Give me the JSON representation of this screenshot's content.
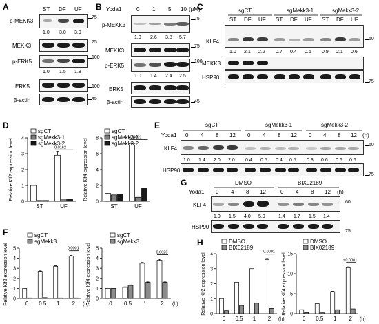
{
  "figure": {
    "panels": {
      "A": {
        "label": "A",
        "lanes": [
          "ST",
          "DF",
          "UF"
        ],
        "rows": [
          {
            "name": "p-MEKK3",
            "quant": [
              "1.0",
              "3.0",
              "3.9"
            ],
            "marker": "75"
          },
          {
            "name": "MEKK3",
            "quant": [],
            "marker": "75"
          },
          {
            "name": "p-ERK5",
            "quant": [
              "1.0",
              "1.5",
              "1.8"
            ],
            "marker": "100"
          },
          {
            "name": "ERK5",
            "quant": [],
            "marker": "100"
          },
          {
            "name": "β-actin",
            "quant": [],
            "marker": "45"
          }
        ]
      },
      "B": {
        "label": "B",
        "treatment": "Yoda1",
        "lanes": [
          "0",
          "1",
          "5",
          "10"
        ],
        "unit": "(μM)",
        "rows": [
          {
            "name": "p-MEKK3",
            "quant": [
              "1.0",
              "2.6",
              "3.8",
              "5.7"
            ],
            "marker": "75"
          },
          {
            "name": "MEKK3",
            "quant": [],
            "marker": "75"
          },
          {
            "name": "p-ERK5",
            "quant": [
              "1.0",
              "1.4",
              "2.4",
              "2.5"
            ],
            "marker": "100"
          },
          {
            "name": "ERK5",
            "quant": [],
            "marker": "100"
          },
          {
            "name": "β-actin",
            "quant": [],
            "marker": "45"
          }
        ]
      },
      "C": {
        "label": "C",
        "groups": [
          "sgCT",
          "sgMekk3-1",
          "sgMekk3-2"
        ],
        "lanes": [
          "ST",
          "DF",
          "UF",
          "ST",
          "DF",
          "UF",
          "ST",
          "DF",
          "UF"
        ],
        "rows": [
          {
            "name": "KLF4",
            "quant": [
              "1.0",
              "2.1",
              "2.2",
              "0.7",
              "0.4",
              "0.6",
              "0.9",
              "2.1",
              "0.6"
            ],
            "marker": "60"
          },
          {
            "name": "MEKK3",
            "quant": [],
            "marker": ""
          },
          {
            "name": "HSP90",
            "quant": [],
            "marker": "75"
          }
        ]
      },
      "D": {
        "label": "D",
        "legend": [
          "sgCT",
          "sgMekk3-1",
          "sgMekk3-2"
        ],
        "charts": [
          {
            "ylabel": "Relative Klf2 expression level",
            "annotation": "0.0162"
          },
          {
            "ylabel": "Relative Klf4 expression level",
            "annotation": "<0.0001"
          }
        ]
      },
      "E": {
        "label": "E",
        "treatment": "Yoda1",
        "groups": [
          "sgCT",
          "sgMekk3-1",
          "sgMekk3-2"
        ],
        "lanes": [
          "0",
          "4",
          "8",
          "12",
          "0",
          "4",
          "8",
          "12",
          "0",
          "4",
          "8",
          "12"
        ],
        "unit": "(h)",
        "rows": [
          {
            "name": "KLF4",
            "quant": [
              "1.0",
              "1.4",
              "2.0",
              "2.0",
              "0.4",
              "0.5",
              "0.4",
              "0.5",
              "0.3",
              "0.6",
              "0.6",
              "0.6"
            ],
            "marker": "60"
          },
          {
            "name": "HSP90",
            "quant": [],
            "marker": "75"
          }
        ]
      },
      "F": {
        "label": "F",
        "legend": [
          "sgCT",
          "sgMekk3"
        ],
        "charts": [
          {
            "ylabel": "Relative Klf2 expression level",
            "annotation": "0.0001"
          },
          {
            "ylabel": "Relative Klf4 expression level",
            "annotation": "0.0020"
          }
        ]
      },
      "G": {
        "label": "G",
        "treatment": "Yoda1",
        "groups": [
          "DMSO",
          "BIX02189"
        ],
        "lanes": [
          "0",
          "4",
          "8",
          "12",
          "0",
          "4",
          "8",
          "12"
        ],
        "unit": "(h)",
        "rows": [
          {
            "name": "KLF4",
            "quant": [
              "1.0",
              "1.5",
              "4.0",
              "5.9",
              "1.4",
              "1.7",
              "1.5",
              "1.4"
            ],
            "marker": "60"
          },
          {
            "name": "HSP90",
            "quant": [],
            "marker": "75"
          }
        ]
      },
      "H": {
        "label": "H",
        "legend": [
          "DMSO",
          "BIX02189"
        ],
        "charts": [
          {
            "ylabel": "Relative Klf2 expression level",
            "annotation": "0.0001"
          },
          {
            "ylabel": "Relative Klf4 expression level",
            "annotation": "<0.0001"
          }
        ]
      }
    }
  },
  "chart_data": [
    {
      "panel": "D-left",
      "type": "bar",
      "categories": [
        "ST",
        "UF"
      ],
      "series": [
        {
          "name": "sgCT",
          "values": [
            1.0,
            2.9
          ]
        },
        {
          "name": "sgMekk3-1",
          "values": [
            0.05,
            0.15
          ]
        },
        {
          "name": "sgMekk3-2",
          "values": [
            0.05,
            0.15
          ]
        }
      ],
      "ylim": [
        0,
        4
      ],
      "yticks": [
        "0",
        "1",
        "2",
        "3",
        "4"
      ],
      "errors": [
        [
          0,
          0.25
        ],
        [
          0,
          0
        ],
        [
          0,
          0
        ]
      ]
    },
    {
      "panel": "D-right",
      "type": "bar",
      "categories": [
        "ST",
        "UF"
      ],
      "series": [
        {
          "name": "sgCT",
          "values": [
            1.0,
            7.1
          ]
        },
        {
          "name": "sgMekk3-1",
          "values": [
            0.8,
            0.5
          ]
        },
        {
          "name": "sgMekk3-2",
          "values": [
            0.9,
            1.7
          ]
        }
      ],
      "ylim": [
        0,
        8
      ],
      "yticks": [
        "0",
        "2",
        "4",
        "6",
        "8"
      ],
      "errors": [
        [
          0,
          0.15
        ],
        [
          0,
          0
        ],
        [
          0,
          0
        ]
      ]
    },
    {
      "panel": "F-left",
      "type": "bar",
      "categories": [
        "0",
        "0.5",
        "1",
        "2"
      ],
      "xunit": "(h)",
      "series": [
        {
          "name": "sgCT",
          "values": [
            1.0,
            2.7,
            3.2,
            4.2
          ]
        },
        {
          "name": "sgMekk3",
          "values": [
            0.05,
            0.08,
            0.05,
            0.05
          ]
        }
      ],
      "ylim": [
        0,
        5
      ],
      "yticks": [
        "0",
        "1",
        "2",
        "3",
        "4",
        "5"
      ],
      "errors": [
        [
          0,
          0.05,
          0.05,
          0.08
        ],
        [
          0,
          0,
          0,
          0
        ]
      ]
    },
    {
      "panel": "F-right",
      "type": "bar",
      "categories": [
        "0",
        "0.5",
        "1",
        "2"
      ],
      "xunit": "(h)",
      "series": [
        {
          "name": "sgCT",
          "values": [
            1.0,
            1.1,
            3.5,
            3.8
          ]
        },
        {
          "name": "sgMekk3",
          "values": [
            1.0,
            1.3,
            1.6,
            1.6
          ]
        }
      ],
      "ylim": [
        0,
        5
      ],
      "yticks": [
        "0",
        "1",
        "2",
        "3",
        "4",
        "5"
      ],
      "errors": [
        [
          0,
          0.05,
          0.08,
          0.1
        ],
        [
          0,
          0.05,
          0.05,
          0.05
        ]
      ]
    },
    {
      "panel": "H-left",
      "type": "bar",
      "categories": [
        "0",
        "0.5",
        "1",
        "2"
      ],
      "xunit": "(h)",
      "series": [
        {
          "name": "DMSO",
          "values": [
            1.0,
            2.1,
            3.0,
            3.6
          ]
        },
        {
          "name": "BIX02189",
          "values": [
            0.2,
            0.55,
            0.7,
            0.35
          ]
        }
      ],
      "ylim": [
        0,
        4
      ],
      "yticks": [
        "0",
        "1",
        "2",
        "3",
        "4"
      ],
      "errors": [
        [
          0,
          0,
          0,
          0.08
        ],
        [
          0,
          0,
          0,
          0
        ]
      ]
    },
    {
      "panel": "H-right",
      "type": "bar",
      "categories": [
        "0",
        "0.5",
        "1",
        "2"
      ],
      "xunit": "(h)",
      "series": [
        {
          "name": "DMSO",
          "values": [
            1.0,
            2.5,
            5.5,
            11.5
          ]
        },
        {
          "name": "BIX02189",
          "values": [
            0.3,
            0.35,
            1.0,
            1.2
          ]
        }
      ],
      "ylim": [
        0,
        15
      ],
      "yticks": [
        "0",
        "5",
        "10",
        "15"
      ],
      "errors": [
        [
          0,
          0,
          0.1,
          0.2
        ],
        [
          0,
          0,
          0,
          0
        ]
      ]
    }
  ]
}
